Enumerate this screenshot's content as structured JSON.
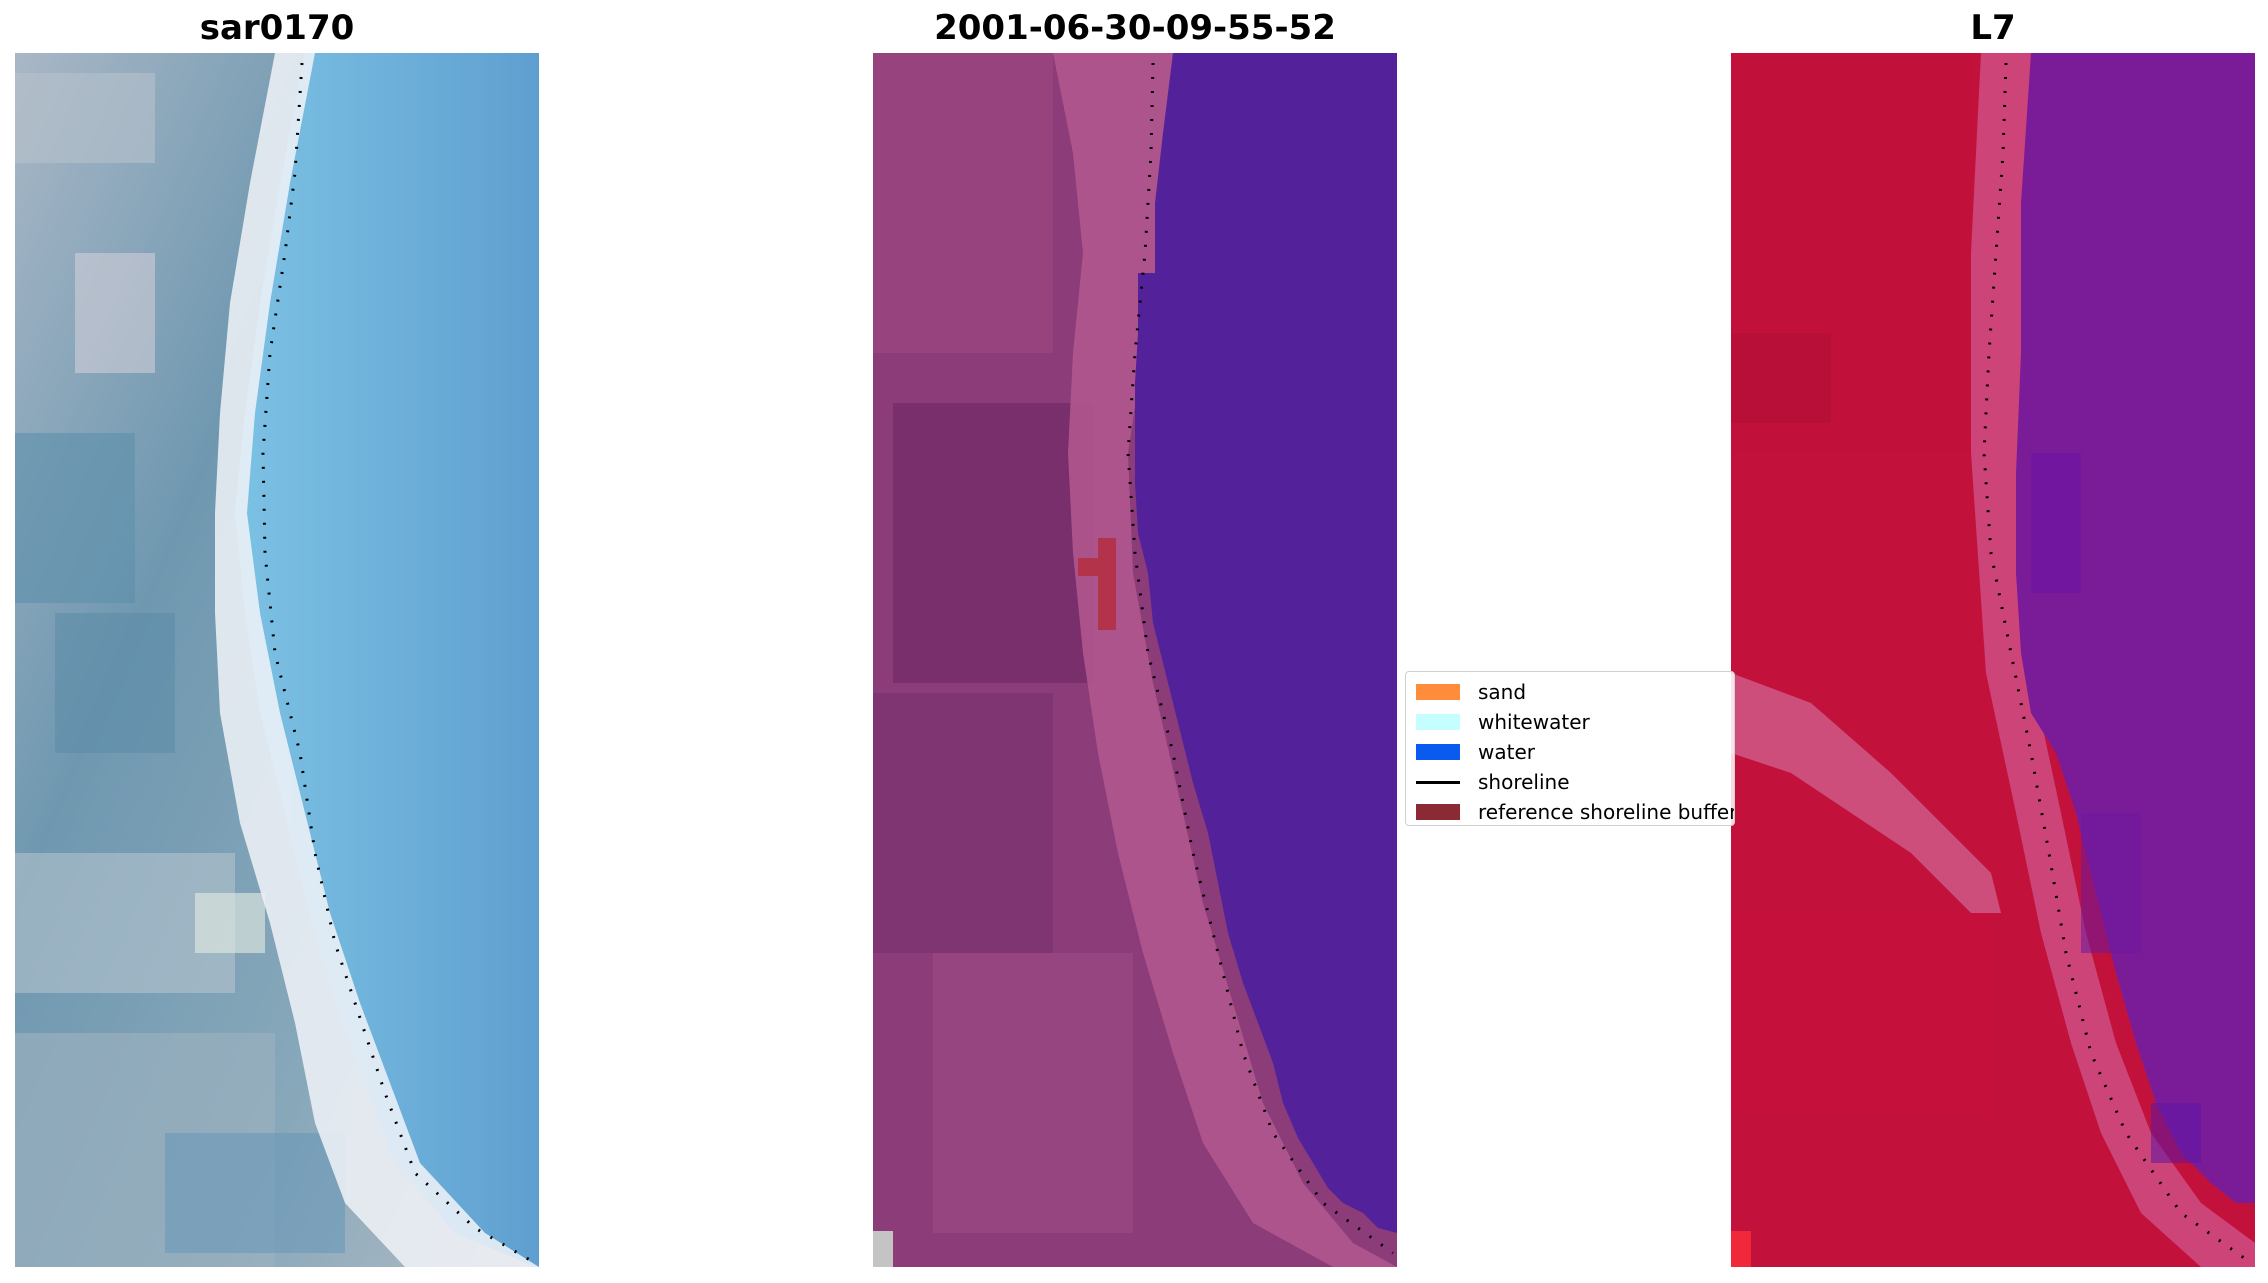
{
  "panels": [
    {
      "title": "sar0170"
    },
    {
      "title": "2001-06-30-09-55-52"
    },
    {
      "title": "L7"
    }
  ],
  "legend": {
    "items": [
      {
        "label": "sand",
        "color": "#ff8c3a"
      },
      {
        "label": "whitewater",
        "color": "#c6feff"
      },
      {
        "label": "water",
        "color": "#0a5af0"
      },
      {
        "label": "shoreline",
        "color": "#000000"
      },
      {
        "label": "reference shoreline buffer",
        "color": "#8b2a35"
      }
    ]
  },
  "colors": {
    "left_water": "#6aa6d4",
    "left_land": "#7fa3b8",
    "center_water": "#53229a",
    "center_land": "#8c3c78",
    "right_water": "#7a1c98",
    "right_land": "#c2123b"
  }
}
